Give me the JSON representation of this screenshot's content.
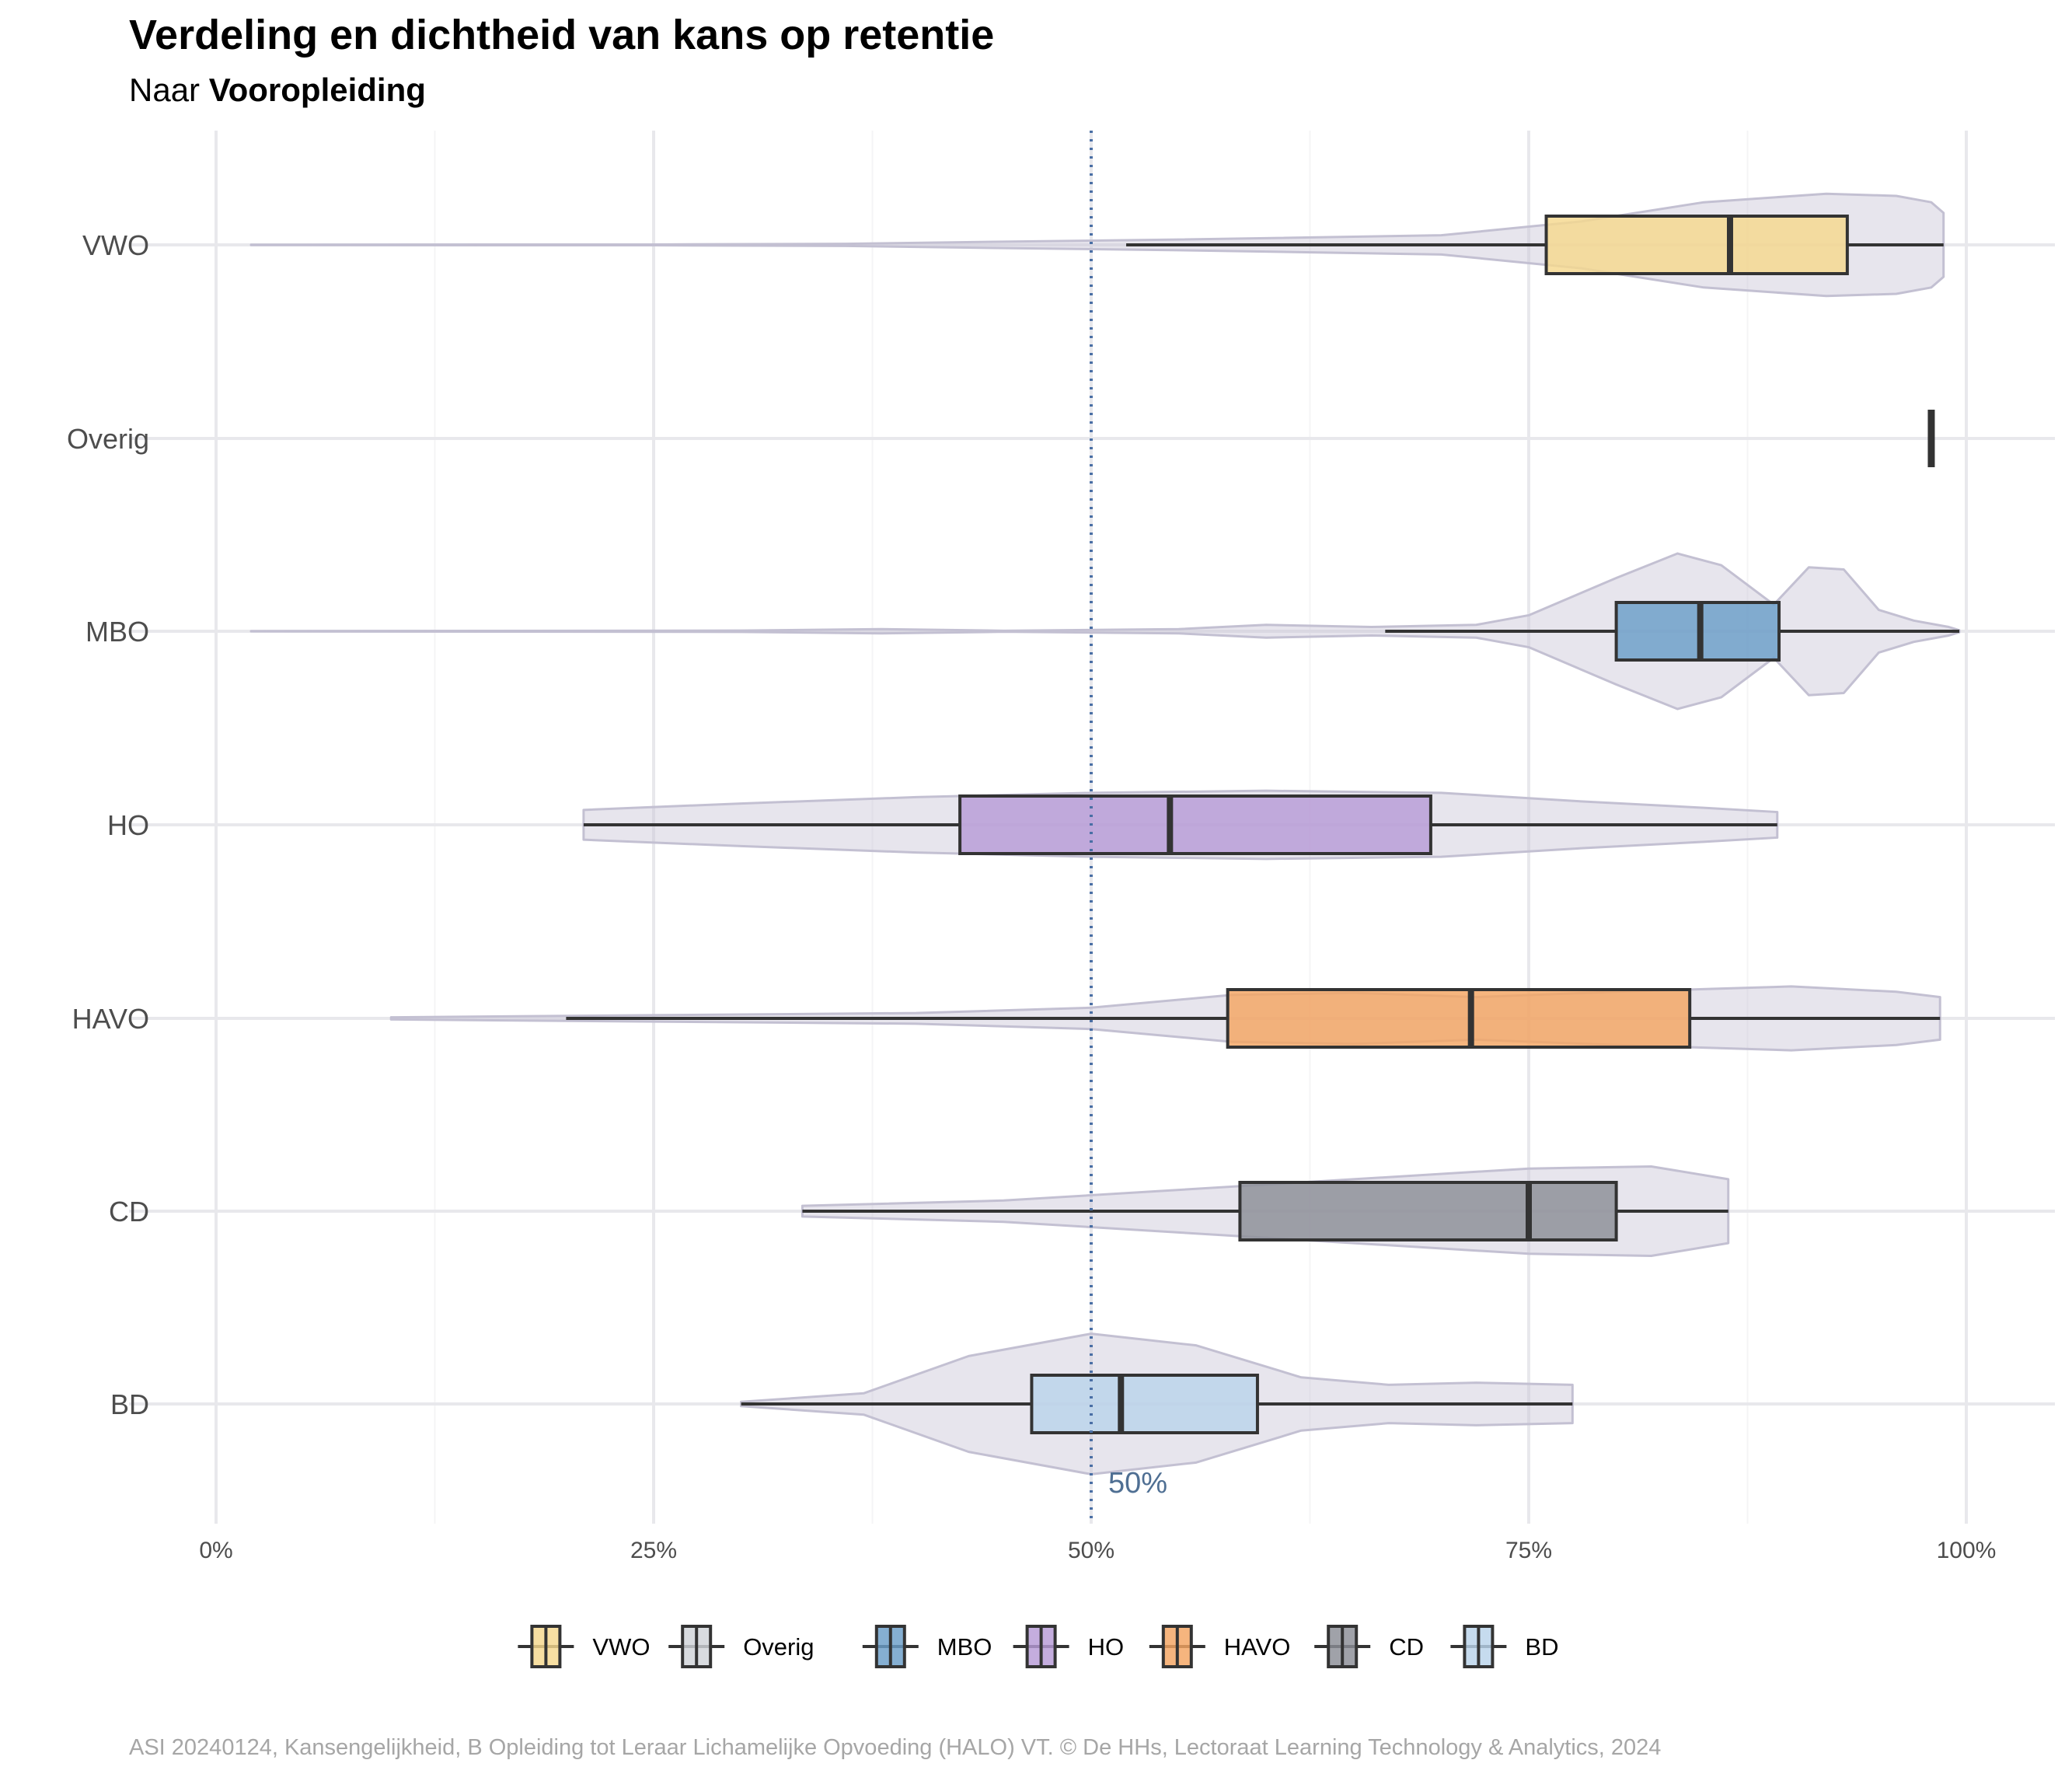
{
  "title": "Verdeling en dichtheid van kans op retentie",
  "subtitle_prefix": "Naar ",
  "subtitle_variable": "Vooropleiding",
  "caption": "ASI 20240124, Kansengelijkheid, B Opleiding tot Leraar Lichamelijke Opvoeding (HALO) VT. © De HHs, Lectoraat Learning Technology & Analytics, 2024",
  "reference_line": {
    "value": 0.5,
    "label": "50%",
    "color": "#4a6fa5"
  },
  "violin_color": "#c9c6d6",
  "chart_data": {
    "type": "violin-boxplot",
    "orientation": "horizontal",
    "x_ticks": [
      {
        "value": 0,
        "label": "0%"
      },
      {
        "value": 0.25,
        "label": "25%"
      },
      {
        "value": 0.5,
        "label": "50%"
      },
      {
        "value": 0.75,
        "label": "75%"
      },
      {
        "value": 1.0,
        "label": "100%"
      }
    ],
    "xlim": [
      -0.05,
      1.05
    ],
    "grid": true,
    "legend_position": "bottom",
    "categories": [
      "VWO",
      "Overig",
      "MBO",
      "HO",
      "HAVO",
      "CD",
      "BD"
    ],
    "series": [
      {
        "name": "VWO",
        "color": "#f5d88e",
        "whisker_low": 0.52,
        "q1": 0.76,
        "median": 0.865,
        "q3": 0.932,
        "whisker_high": 0.987,
        "violin": [
          [
            0.02,
            0.002
          ],
          [
            0.25,
            0.004
          ],
          [
            0.36,
            0.01
          ],
          [
            0.45,
            0.03
          ],
          [
            0.55,
            0.05
          ],
          [
            0.7,
            0.09
          ],
          [
            0.78,
            0.22
          ],
          [
            0.85,
            0.4
          ],
          [
            0.92,
            0.48
          ],
          [
            0.96,
            0.46
          ],
          [
            0.98,
            0.4
          ],
          [
            0.987,
            0.3
          ]
        ]
      },
      {
        "name": "Overig",
        "color": "#d0d3d8",
        "whisker_low": 0.98,
        "q1": 0.98,
        "median": 0.98,
        "q3": 0.98,
        "whisker_high": 0.98,
        "violin": []
      },
      {
        "name": "MBO",
        "color": "#6a9ec8",
        "whisker_low": 0.668,
        "q1": 0.8,
        "median": 0.848,
        "q3": 0.893,
        "whisker_high": 0.996,
        "violin": [
          [
            0.02,
            0.001
          ],
          [
            0.3,
            0.006
          ],
          [
            0.38,
            0.02
          ],
          [
            0.45,
            0.005
          ],
          [
            0.55,
            0.02
          ],
          [
            0.6,
            0.06
          ],
          [
            0.66,
            0.04
          ],
          [
            0.72,
            0.06
          ],
          [
            0.75,
            0.15
          ],
          [
            0.8,
            0.5
          ],
          [
            0.835,
            0.73
          ],
          [
            0.86,
            0.62
          ],
          [
            0.89,
            0.25
          ],
          [
            0.91,
            0.6
          ],
          [
            0.93,
            0.58
          ],
          [
            0.95,
            0.2
          ],
          [
            0.97,
            0.1
          ],
          [
            0.99,
            0.04
          ],
          [
            0.996,
            0.01
          ]
        ]
      },
      {
        "name": "HO",
        "color": "#b79bd7",
        "whisker_low": 0.21,
        "q1": 0.425,
        "median": 0.545,
        "q3": 0.694,
        "whisker_high": 0.892,
        "violin": [
          [
            0.21,
            0.14
          ],
          [
            0.3,
            0.2
          ],
          [
            0.4,
            0.26
          ],
          [
            0.5,
            0.3
          ],
          [
            0.6,
            0.32
          ],
          [
            0.7,
            0.3
          ],
          [
            0.78,
            0.22
          ],
          [
            0.85,
            0.16
          ],
          [
            0.892,
            0.12
          ]
        ]
      },
      {
        "name": "HAVO",
        "color": "#f4a562",
        "whisker_low": 0.2,
        "q1": 0.578,
        "median": 0.717,
        "q3": 0.842,
        "whisker_high": 0.985,
        "violin": [
          [
            0.1,
            0.01
          ],
          [
            0.25,
            0.03
          ],
          [
            0.4,
            0.05
          ],
          [
            0.5,
            0.1
          ],
          [
            0.58,
            0.22
          ],
          [
            0.65,
            0.24
          ],
          [
            0.72,
            0.2
          ],
          [
            0.8,
            0.25
          ],
          [
            0.9,
            0.3
          ],
          [
            0.96,
            0.25
          ],
          [
            0.985,
            0.2
          ]
        ]
      },
      {
        "name": "CD",
        "color": "#8b8e96",
        "whisker_low": 0.335,
        "q1": 0.585,
        "median": 0.75,
        "q3": 0.8,
        "whisker_high": 0.864,
        "violin": [
          [
            0.335,
            0.05
          ],
          [
            0.45,
            0.1
          ],
          [
            0.55,
            0.2
          ],
          [
            0.65,
            0.3
          ],
          [
            0.75,
            0.4
          ],
          [
            0.82,
            0.42
          ],
          [
            0.864,
            0.3
          ]
        ]
      },
      {
        "name": "BD",
        "color": "#b9d3ea",
        "whisker_low": 0.3,
        "q1": 0.466,
        "median": 0.517,
        "q3": 0.595,
        "whisker_high": 0.775,
        "violin": [
          [
            0.3,
            0.02
          ],
          [
            0.37,
            0.1
          ],
          [
            0.43,
            0.45
          ],
          [
            0.5,
            0.66
          ],
          [
            0.56,
            0.55
          ],
          [
            0.62,
            0.25
          ],
          [
            0.67,
            0.18
          ],
          [
            0.72,
            0.2
          ],
          [
            0.775,
            0.18
          ]
        ]
      }
    ]
  }
}
